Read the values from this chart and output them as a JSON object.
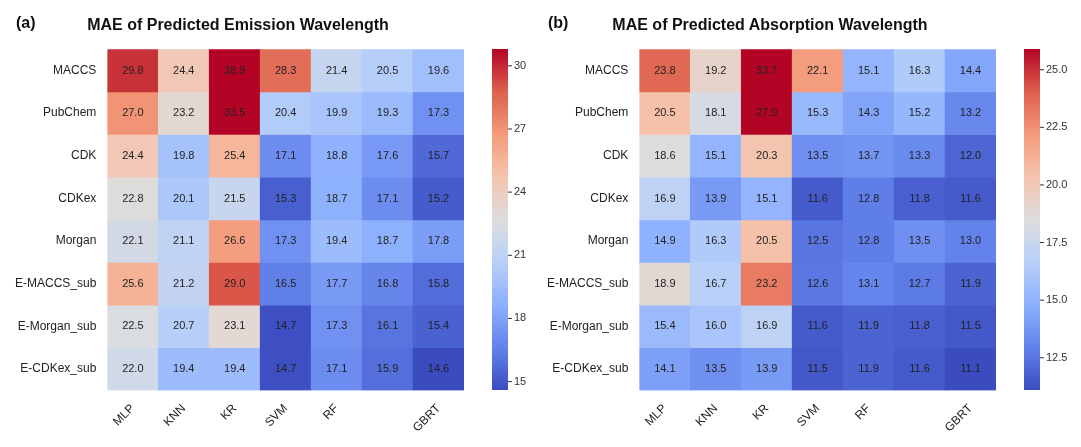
{
  "chart_data": [
    {
      "type": "heatmap",
      "title": "MAE of Predicted Emission Wavelength",
      "annotations": [
        "(a)"
      ],
      "categories": [
        "MLP",
        "KNN",
        "KR",
        "SVM",
        "RF",
        null,
        "GBRT"
      ],
      "y_categories": [
        "MACCS",
        "PubChem",
        "CDK",
        "CDKex",
        "Morgan",
        "E-MACCS_sub",
        "E-Morgan_sub",
        "E-CDKex_sub"
      ],
      "cells": [
        [
          29.8,
          24.4,
          38.9,
          28.3,
          21.4,
          20.5,
          19.6
        ],
        [
          27.0,
          23.2,
          33.5,
          20.4,
          19.9,
          19.3,
          17.3
        ],
        [
          24.4,
          19.8,
          25.4,
          17.1,
          18.8,
          17.6,
          15.7
        ],
        [
          22.8,
          20.1,
          21.5,
          15.3,
          18.7,
          17.1,
          15.2
        ],
        [
          22.1,
          21.1,
          26.6,
          17.3,
          19.4,
          18.7,
          17.8
        ],
        [
          25.6,
          21.2,
          29.0,
          16.5,
          17.7,
          16.8,
          15.8
        ],
        [
          22.5,
          20.7,
          23.1,
          14.7,
          17.3,
          16.1,
          15.4
        ],
        [
          22.0,
          19.4,
          19.4,
          14.7,
          17.1,
          15.9,
          14.6
        ]
      ],
      "cell_labels": [
        [
          "29.8",
          "24.4",
          "38.9",
          "28.3",
          "21.4",
          "20.5",
          "19.6"
        ],
        [
          "27.0",
          "23.2",
          "33.5",
          "20.4",
          "19.9",
          "19.3",
          "17.3"
        ],
        [
          "24.4",
          "19.8",
          "25.4",
          "17.1",
          "18.8",
          "17.6",
          "15.7"
        ],
        [
          "22.8",
          "20.1",
          "21.5",
          "15.3",
          "18.7",
          "17.1",
          "15.2"
        ],
        [
          "22.1",
          "21.1",
          "26.6",
          "17.3",
          "19.4",
          "18.7",
          "17.8"
        ],
        [
          "25.6",
          "21.2",
          "29.0",
          "16.5",
          "17.7",
          "16.8",
          "15.8"
        ],
        [
          "22.5",
          "20.7",
          "23.1",
          "14.7",
          "17.3",
          "16.1",
          "15.4"
        ],
        [
          "22.0",
          "19.4",
          "19.4",
          "14.7",
          "17.1",
          "15.9",
          "14.6"
        ]
      ],
      "clim": [
        14.6,
        30.8
      ],
      "cticks": [
        15,
        18,
        21,
        24,
        27,
        30
      ]
    },
    {
      "type": "heatmap",
      "title": "MAE of Predicted Absorption Wavelength",
      "annotations": [
        "(b)"
      ],
      "categories": [
        "MLP",
        "KNN",
        "KR",
        "SVM",
        "RF",
        null,
        "GBRT"
      ],
      "y_categories": [
        "MACCS",
        "PubChem",
        "CDK",
        "CDKex",
        "Morgan",
        "E-MACCS_sub",
        "E-Morgan_sub",
        "E-CDKex_sub"
      ],
      "cells": [
        [
          23.8,
          19.2,
          33.7,
          22.1,
          15.1,
          16.3,
          14.4
        ],
        [
          20.5,
          18.1,
          27.9,
          15.3,
          14.3,
          15.2,
          13.2
        ],
        [
          18.6,
          15.1,
          20.3,
          13.5,
          13.7,
          13.3,
          12.0
        ],
        [
          16.9,
          13.9,
          15.1,
          11.6,
          12.8,
          11.8,
          11.6
        ],
        [
          14.9,
          16.3,
          20.5,
          12.5,
          12.8,
          13.5,
          13.0
        ],
        [
          18.9,
          16.7,
          23.2,
          12.6,
          13.1,
          12.7,
          11.9
        ],
        [
          15.4,
          16.0,
          16.9,
          11.6,
          11.9,
          11.8,
          11.5
        ],
        [
          14.1,
          13.5,
          13.9,
          11.5,
          11.9,
          11.6,
          11.1
        ]
      ],
      "cell_labels": [
        [
          "23.8",
          "19.2",
          "33.7",
          "22.1",
          "15.1",
          "16.3",
          "14.4"
        ],
        [
          "20.5",
          "18.1",
          "27.9",
          "15.3",
          "14.3",
          "15.2",
          "13.2"
        ],
        [
          "18.6",
          "15.1",
          "20.3",
          "13.5",
          "13.7",
          "13.3",
          "12.0"
        ],
        [
          "16.9",
          "13.9",
          "15.1",
          "11.6",
          "12.8",
          "11.8",
          "11.6"
        ],
        [
          "14.9",
          "16.3",
          "20.5",
          "12.5",
          "12.8",
          "13.5",
          "13.0"
        ],
        [
          "18.9",
          "16.7",
          "23.2",
          "12.6",
          "13.1",
          "12.7",
          "11.9"
        ],
        [
          "15.4",
          "16.0",
          "16.9",
          "11.6",
          "11.9",
          "11.8",
          "11.5"
        ],
        [
          "14.1",
          "13.5",
          "13.9",
          "11.5",
          "11.9",
          "11.6",
          "11.1"
        ]
      ],
      "clim": [
        11.1,
        25.9
      ],
      "cticks": [
        {
          "value": 12.5,
          "label": "12.5"
        },
        {
          "value": 15,
          "label": "15.0"
        },
        {
          "value": 17.5,
          "label": "17.5"
        },
        {
          "value": 20,
          "label": "20.0"
        },
        {
          "value": 22.5,
          "label": "22.5"
        },
        {
          "value": 25,
          "label": "25.0"
        }
      ]
    }
  ]
}
